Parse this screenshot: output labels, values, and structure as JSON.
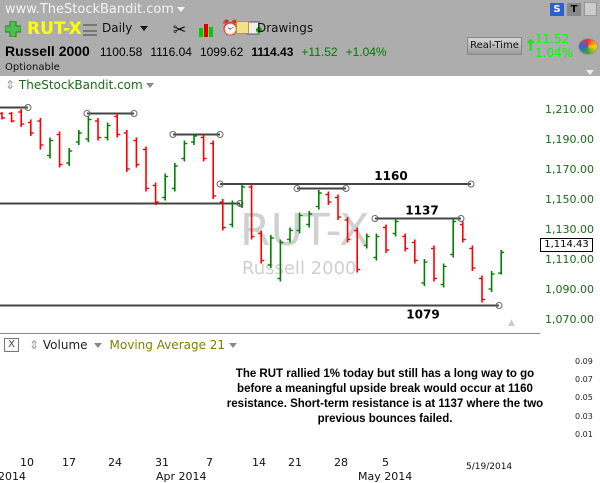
{
  "header": {
    "site": "www.TheStockBandit.com",
    "symbol": "RUT-X",
    "period": "Daily",
    "drawings": "Drawings",
    "name": "Russell 2000",
    "open": "1100.58",
    "high": "1116.04",
    "low": "1099.62",
    "last": "1114.43",
    "change": "+11.52",
    "change_pct": "+1.04%",
    "optionable": "Optionable",
    "realtime": "Real-Time",
    "rt_change": "11.52",
    "rt_pct": "1.04%",
    "s_btn": "S",
    "t_btn": "T"
  },
  "chart": {
    "source_label": "TheStockBandit.com",
    "watermark_symbol": "RUT-X",
    "watermark_name": "Russell 2000",
    "price_box": "1,114.43",
    "y_labels": [
      "1,210.00",
      "1,190.00",
      "1,170.00",
      "1,150.00",
      "1,130.00",
      "1,110.00",
      "1,090.00",
      "1,070.00"
    ],
    "levels": [
      {
        "label": "1160"
      },
      {
        "label": "1137"
      },
      {
        "label": "1079"
      }
    ]
  },
  "lower": {
    "close": "X",
    "volume": "Volume",
    "ma": "Moving Average 21",
    "axis": [
      "0.09",
      "0.07",
      "0.05",
      "0.03",
      "0.01"
    ],
    "note": "The RUT rallied 1% today but still has a long way to go before a meaningful upside break would occur at 1160 resistance.  Short-term resistance is at 1137 where the two previous bounces failed."
  },
  "xaxis": {
    "days": [
      "10",
      "17",
      "24",
      "31",
      "7",
      "14",
      "21",
      "28",
      "5"
    ],
    "months": [
      "2014",
      "Apr 2014",
      "May 2014"
    ],
    "date": "5/19/2014"
  },
  "colors": {
    "up": "#008000",
    "down": "#ff0000",
    "header": "#adadad",
    "symbol": "#ffff00"
  },
  "chart_data": {
    "type": "ohlc",
    "ylim": [
      1070,
      1210
    ],
    "bars": [
      [
        1207,
        1208,
        1203,
        1204
      ],
      [
        1207,
        1208,
        1201,
        1202
      ],
      [
        1208,
        1210,
        1198,
        1200
      ],
      [
        1201,
        1203,
        1192,
        1194
      ],
      [
        1202,
        1204,
        1183,
        1186
      ],
      [
        1179,
        1191,
        1177,
        1189
      ],
      [
        1193,
        1195,
        1171,
        1173
      ],
      [
        1174,
        1184,
        1172,
        1182
      ],
      [
        1188,
        1196,
        1186,
        1194
      ],
      [
        1190,
        1205,
        1188,
        1203
      ],
      [
        1202,
        1204,
        1189,
        1191
      ],
      [
        1191,
        1201,
        1189,
        1199
      ],
      [
        1205,
        1207,
        1191,
        1193
      ],
      [
        1194,
        1196,
        1168,
        1170
      ],
      [
        1189,
        1191,
        1171,
        1173
      ],
      [
        1183,
        1185,
        1155,
        1157
      ],
      [
        1159,
        1161,
        1146,
        1148
      ],
      [
        1151,
        1167,
        1149,
        1165
      ],
      [
        1157,
        1174,
        1155,
        1172
      ],
      [
        1177,
        1189,
        1175,
        1187
      ],
      [
        1188,
        1193,
        1186,
        1192
      ],
      [
        1191,
        1193,
        1175,
        1177
      ],
      [
        1187,
        1189,
        1150,
        1152
      ],
      [
        1148,
        1150,
        1129,
        1131
      ],
      [
        1133,
        1149,
        1131,
        1147
      ],
      [
        1146,
        1160,
        1144,
        1158
      ],
      [
        1158,
        1160,
        1123,
        1125
      ],
      [
        1127,
        1129,
        1107,
        1109
      ],
      [
        1106,
        1126,
        1104,
        1124
      ],
      [
        1097,
        1123,
        1095,
        1121
      ],
      [
        1123,
        1131,
        1121,
        1129
      ],
      [
        1129,
        1141,
        1127,
        1139
      ],
      [
        1133,
        1142,
        1131,
        1140
      ],
      [
        1145,
        1156,
        1143,
        1154
      ],
      [
        1153,
        1155,
        1146,
        1148
      ],
      [
        1151,
        1153,
        1136,
        1138
      ],
      [
        1136,
        1138,
        1121,
        1123
      ],
      [
        1129,
        1131,
        1101,
        1103
      ],
      [
        1119,
        1127,
        1117,
        1125
      ],
      [
        1111,
        1127,
        1109,
        1125
      ],
      [
        1131,
        1133,
        1114,
        1116
      ],
      [
        1127,
        1137,
        1125,
        1135
      ],
      [
        1125,
        1127,
        1115,
        1117
      ],
      [
        1121,
        1123,
        1107,
        1109
      ],
      [
        1094,
        1110,
        1092,
        1108
      ],
      [
        1117,
        1119,
        1095,
        1097
      ],
      [
        1093,
        1107,
        1091,
        1105
      ],
      [
        1113,
        1137,
        1111,
        1135
      ],
      [
        1133,
        1135,
        1121,
        1123
      ],
      [
        1117,
        1119,
        1102,
        1104
      ],
      [
        1097,
        1099,
        1081,
        1083
      ],
      [
        1090,
        1102,
        1088,
        1100
      ],
      [
        1100.58,
        1116.04,
        1099.62,
        1114.43
      ]
    ]
  }
}
